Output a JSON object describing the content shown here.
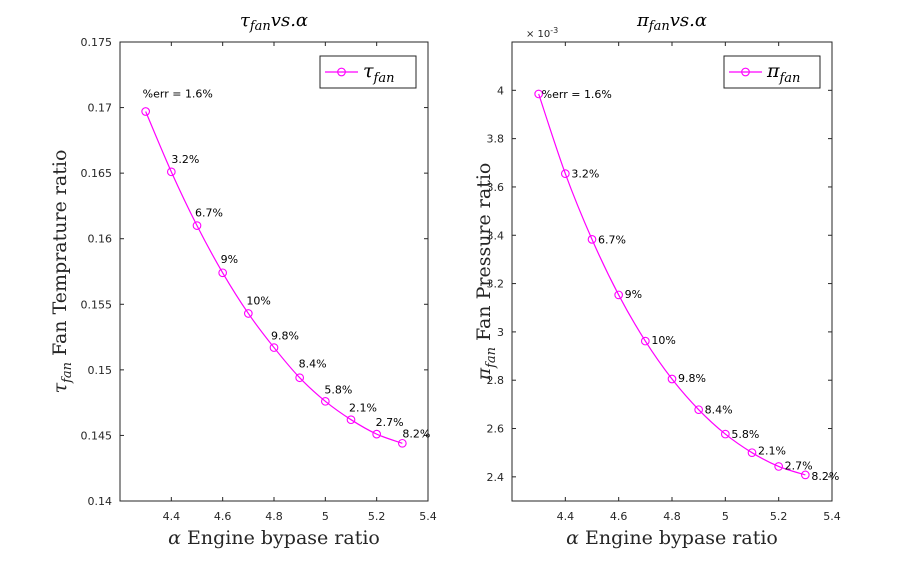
{
  "chart_data": [
    {
      "type": "line",
      "title": "τfan vs.α",
      "title_parts": {
        "sym": "τ",
        "sub": "fan",
        "rest": "vs.α"
      },
      "xlabel": "α Engine bypase ratio",
      "xlabel_parts": {
        "sym": "α",
        "text": "Engine bypase ratio"
      },
      "ylabel": "τfan Fan Temprature ratio",
      "ylabel_parts": {
        "sym": "τ",
        "sub": "fan",
        "text": "Fan Temprature ratio"
      },
      "xlim": [
        4.2,
        5.4
      ],
      "ylim": [
        0.14,
        0.175
      ],
      "xticks": [
        "4.4",
        "4.6",
        "4.8",
        "5",
        "5.2",
        "5.4"
      ],
      "xtick_values": [
        4.4,
        4.6,
        4.8,
        5.0,
        5.2,
        5.4
      ],
      "yticks": [
        "0.14",
        "0.145",
        "0.15",
        "0.155",
        "0.16",
        "0.165",
        "0.17",
        "0.175"
      ],
      "ytick_values": [
        0.14,
        0.145,
        0.15,
        0.155,
        0.16,
        0.165,
        0.17,
        0.175
      ],
      "y_exponent": "",
      "series": [
        {
          "name": "τfan",
          "name_parts": {
            "sym": "τ",
            "sub": "fan"
          },
          "color": "#ff00ff",
          "marker": "circle",
          "x": [
            4.3,
            4.4,
            4.5,
            4.6,
            4.7,
            4.8,
            4.9,
            5.0,
            5.1,
            5.2,
            5.3
          ],
          "y": [
            0.1697,
            0.1651,
            0.161,
            0.1574,
            0.1543,
            0.1517,
            0.1494,
            0.1476,
            0.1462,
            0.1451,
            0.1444
          ]
        }
      ],
      "annotations": [
        "%err = 1.6%",
        "3.2%",
        "6.7%",
        "9%",
        "10%",
        "9.8%",
        "8.4%",
        "5.8%",
        "2.1%",
        "2.7%",
        "8.2%"
      ],
      "legend": "top-right",
      "grid": false
    },
    {
      "type": "line",
      "title": "πfan vs.α",
      "title_parts": {
        "sym": "π",
        "sub": "fan",
        "rest": "vs.α"
      },
      "xlabel": "α Engine bypase ratio",
      "xlabel_parts": {
        "sym": "α",
        "text": "Engine bypase ratio"
      },
      "ylabel": "πfan Fan Pressure ratio",
      "ylabel_parts": {
        "sym": "π",
        "sub": "fan",
        "text": "Fan Pressure ratio"
      },
      "xlim": [
        4.2,
        5.4
      ],
      "ylim": [
        2.3,
        4.2
      ],
      "xticks": [
        "4.4",
        "4.6",
        "4.8",
        "5",
        "5.2",
        "5.4"
      ],
      "xtick_values": [
        4.4,
        4.6,
        4.8,
        5.0,
        5.2,
        5.4
      ],
      "yticks": [
        "2.4",
        "2.6",
        "2.8",
        "3",
        "3.2",
        "3.4",
        "3.6",
        "3.8",
        "4"
      ],
      "ytick_values": [
        2.4,
        2.6,
        2.8,
        3.0,
        3.2,
        3.4,
        3.6,
        3.8,
        4.0
      ],
      "y_exponent": "× 10",
      "y_exponent_power": "-3",
      "series": [
        {
          "name": "πfan",
          "name_parts": {
            "sym": "π",
            "sub": "fan"
          },
          "color": "#ff00ff",
          "marker": "circle",
          "x": [
            4.3,
            4.4,
            4.5,
            4.6,
            4.7,
            4.8,
            4.9,
            5.0,
            5.1,
            5.2,
            5.3
          ],
          "y": [
            3.985,
            3.655,
            3.383,
            3.153,
            2.962,
            2.805,
            2.678,
            2.577,
            2.5,
            2.443,
            2.408
          ]
        }
      ],
      "annotations": [
        "%err = 1.6%",
        "3.2%",
        "6.7%",
        "9%",
        "10%",
        "9.8%",
        "8.4%",
        "5.8%",
        "2.1%",
        "2.7%",
        "8.2%"
      ],
      "legend": "top-right",
      "grid": false
    }
  ]
}
